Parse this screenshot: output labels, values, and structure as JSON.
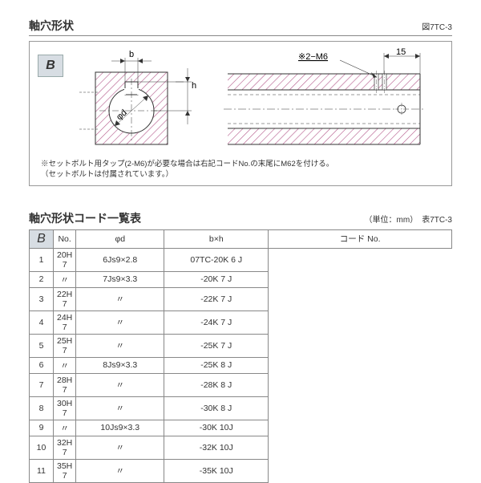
{
  "figure": {
    "title": "軸穴形状",
    "ref": "図7TC-3",
    "type_label": "B",
    "labels": {
      "b": "b",
      "h": "h",
      "phi_d": "φd",
      "tap": "※2−M6",
      "dim15": "15"
    },
    "footnote": "※セットボルト用タップ(2-M6)が必要な場合は右記コードNo.の末尾にM62を付ける。\n （セットボルトは付属されています。）",
    "colors": {
      "hatch": "#b3588a",
      "line": "#333333",
      "badge_bg": "#d7dde3"
    }
  },
  "table": {
    "title": "軸穴形状コード一覧表",
    "unit_ref": "（単位：mm）　表7TC-3",
    "type_label": "B",
    "columns": [
      "No.",
      "φd",
      "b×h",
      "コード No."
    ],
    "rows": [
      [
        "1",
        "20H 7",
        "6Js9×2.8",
        "07TC-20K 6 J"
      ],
      [
        "2",
        "〃",
        "7Js9×3.3",
        "-20K 7 J"
      ],
      [
        "3",
        "22H 7",
        "〃",
        "-22K 7 J"
      ],
      [
        "4",
        "24H 7",
        "〃",
        "-24K 7 J"
      ],
      [
        "5",
        "25H 7",
        "〃",
        "-25K 7 J"
      ],
      [
        "6",
        "〃",
        "8Js9×3.3",
        "-25K 8 J"
      ],
      [
        "7",
        "28H 7",
        "〃",
        "-28K 8 J"
      ],
      [
        "8",
        "30H 7",
        "〃",
        "-30K 8 J"
      ],
      [
        "9",
        "〃",
        "10Js9×3.3",
        "-30K 10J"
      ],
      [
        "10",
        "32H 7",
        "〃",
        "-32K 10J"
      ],
      [
        "11",
        "35H 7",
        "〃",
        "-35K 10J"
      ]
    ]
  }
}
